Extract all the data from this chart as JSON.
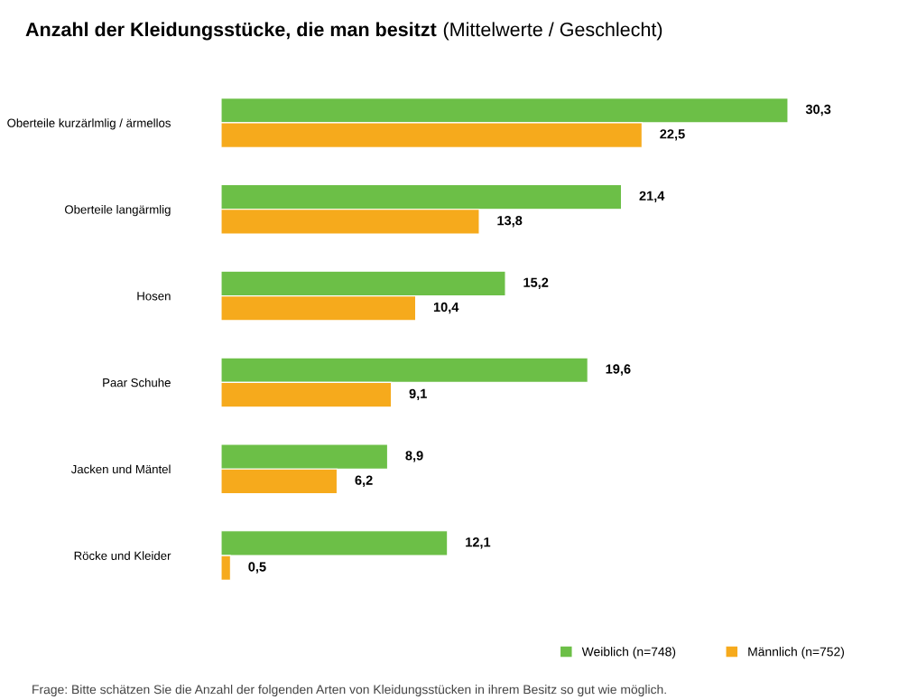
{
  "chart_data": {
    "type": "bar",
    "orientation": "horizontal",
    "title": "Anzahl der Kleidungsstücke, die man besitzt",
    "subtitle": "(Mittelwerte / Geschlecht)",
    "categories": [
      "Oberteile kurzärlmlig / ärmellos",
      "Oberteile langärmlig",
      "Hosen",
      "Paar Schuhe",
      "Jacken und Mäntel",
      "Röcke und Kleider"
    ],
    "series": [
      {
        "name": "Weiblich (n=748)",
        "color": "#6cbf47",
        "values": [
          30.3,
          21.4,
          15.2,
          19.6,
          8.9,
          12.1
        ],
        "value_labels": [
          "30,3",
          "21,4",
          "15,2",
          "19,6",
          "8,9",
          "12,1"
        ]
      },
      {
        "name": "Männlich (n=752)",
        "color": "#f6aa1c",
        "values": [
          22.5,
          13.8,
          10.4,
          9.1,
          6.2,
          0.5
        ],
        "value_labels": [
          "22,5",
          "13,8",
          "10,4",
          "9,1",
          "6,2",
          "0,5"
        ]
      }
    ],
    "legend": "bottom right",
    "grid": false,
    "tick_labels": "y",
    "annotations": [
      "Frage: Bitte schätzen Sie die Anzahl der folgenden Arten von Kleidungsstücken in ihrem Besitz so gut wie möglich."
    ]
  }
}
